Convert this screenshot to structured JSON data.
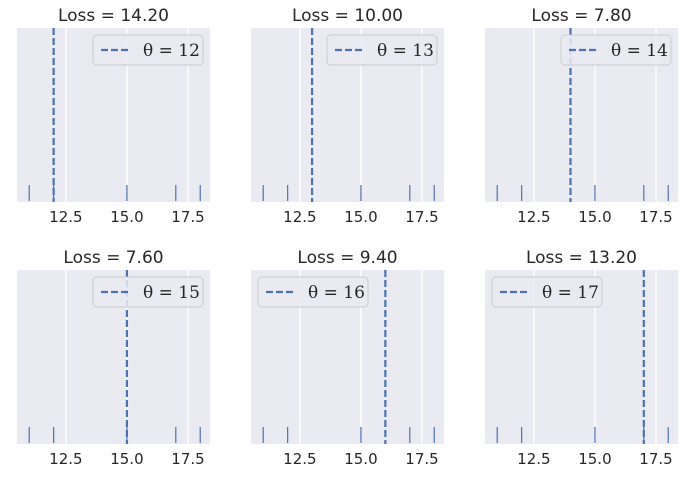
{
  "chart_data": [
    {
      "type": "rug",
      "title": "Loss = 14.20",
      "theta_label": "θ = 12",
      "theta": 12,
      "points": [
        11,
        12,
        15,
        17,
        18
      ],
      "xlim": [
        10.5,
        18.4
      ],
      "xticks": [
        12.5,
        15.0,
        17.5
      ],
      "xtick_labels": [
        "12.5",
        "15.0",
        "17.5"
      ],
      "legend_position": "upper-right"
    },
    {
      "type": "rug",
      "title": "Loss = 10.00",
      "theta_label": "θ = 13",
      "theta": 13,
      "points": [
        11,
        12,
        15,
        17,
        18
      ],
      "xlim": [
        10.5,
        18.4
      ],
      "xticks": [
        12.5,
        15.0,
        17.5
      ],
      "xtick_labels": [
        "12.5",
        "15.0",
        "17.5"
      ],
      "legend_position": "upper-right"
    },
    {
      "type": "rug",
      "title": "Loss = 7.80",
      "theta_label": "θ = 14",
      "theta": 14,
      "points": [
        11,
        12,
        15,
        17,
        18
      ],
      "xlim": [
        10.5,
        18.4
      ],
      "xticks": [
        12.5,
        15.0,
        17.5
      ],
      "xtick_labels": [
        "12.5",
        "15.0",
        "17.5"
      ],
      "legend_position": "upper-right"
    },
    {
      "type": "rug",
      "title": "Loss = 7.60",
      "theta_label": "θ = 15",
      "theta": 15,
      "points": [
        11,
        12,
        15,
        17,
        18
      ],
      "xlim": [
        10.5,
        18.4
      ],
      "xticks": [
        12.5,
        15.0,
        17.5
      ],
      "xtick_labels": [
        "12.5",
        "15.0",
        "17.5"
      ],
      "legend_position": "upper-right"
    },
    {
      "type": "rug",
      "title": "Loss = 9.40",
      "theta_label": "θ = 16",
      "theta": 16,
      "points": [
        11,
        12,
        15,
        17,
        18
      ],
      "xlim": [
        10.5,
        18.4
      ],
      "xticks": [
        12.5,
        15.0,
        17.5
      ],
      "xtick_labels": [
        "12.5",
        "15.0",
        "17.5"
      ],
      "legend_position": "upper-left"
    },
    {
      "type": "rug",
      "title": "Loss = 13.20",
      "theta_label": "θ = 17",
      "theta": 17,
      "points": [
        11,
        12,
        15,
        17,
        18
      ],
      "xlim": [
        10.5,
        18.4
      ],
      "xticks": [
        12.5,
        15.0,
        17.5
      ],
      "xtick_labels": [
        "12.5",
        "15.0",
        "17.5"
      ],
      "legend_position": "upper-left"
    }
  ],
  "colors": {
    "background": "#eaeaf2",
    "grid": "#ffffff",
    "line": "#4c72b0",
    "rug": "#4c72b0",
    "text": "#262626"
  }
}
